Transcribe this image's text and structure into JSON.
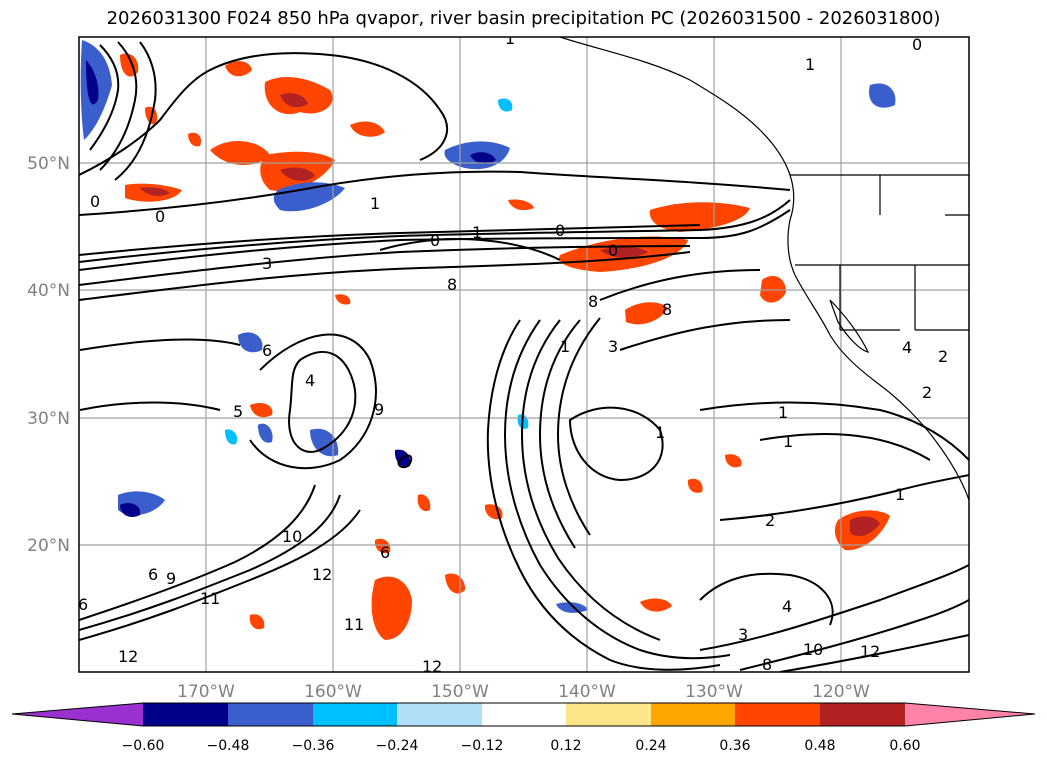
{
  "title": "2026031300 F024 850 hPa qvapor, river basin precipitation PC (2026031500 - 2026031800)",
  "latitude_labels": [
    "50°N",
    "40°N",
    "30°N",
    "20°N"
  ],
  "longitude_labels": [
    "170°W",
    "160°W",
    "150°W",
    "140°W",
    "130°W",
    "120°W"
  ],
  "colorbar": {
    "tick_labels": [
      "-0.60",
      "-0.48",
      "-0.36",
      "-0.24",
      "-0.12",
      "0.12",
      "0.24",
      "0.36",
      "0.48",
      "0.60"
    ],
    "colors": [
      "#9b30d0",
      "#00008b",
      "#3a5fcd",
      "#00bfff",
      "#b0e0f8",
      "#ffffff",
      "#fde68a",
      "#ffa500",
      "#ff4500",
      "#b22222",
      "#ff82a8"
    ]
  },
  "contour_labels": [
    "1",
    "0",
    "1",
    "0",
    "0",
    "1",
    "0",
    "1",
    "3",
    "0",
    "0",
    "8",
    "8",
    "1",
    "3",
    "8",
    "6",
    "4",
    "5",
    "9",
    "1",
    "1",
    "2",
    "1",
    "6",
    "6",
    "10",
    "9",
    "11",
    "12",
    "11",
    "12",
    "6",
    "2",
    "4",
    "2",
    "1",
    "4",
    "3",
    "12",
    "8",
    "10",
    "12"
  ]
}
